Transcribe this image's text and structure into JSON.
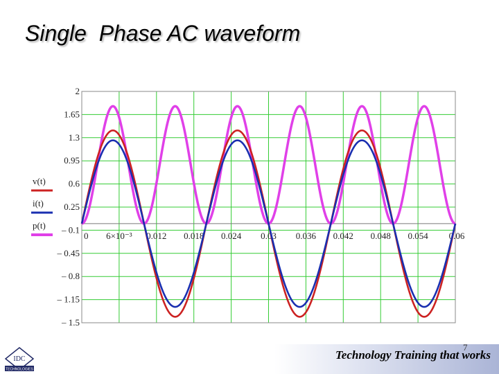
{
  "slide": {
    "title": "Single  Phase AC waveform",
    "footer": "Technology Training that works",
    "page_number": "7",
    "logo_text": "IDC",
    "logo_subtext": "TECHNOLOGIES"
  },
  "colors": {
    "v": "#cc2222",
    "i": "#1a2fb0",
    "p": "#e040e8",
    "grid": "#33cc33"
  },
  "chart_data": {
    "type": "line",
    "xlim": [
      0,
      0.06
    ],
    "ylim": [
      -1.5,
      2
    ],
    "x_ticks": [
      "0",
      "6×10⁻³",
      "0.012",
      "0.018",
      "0.024",
      "0.03",
      "0.036",
      "0.042",
      "0.048",
      "0.054",
      "0.06"
    ],
    "x_tick_values": [
      0,
      0.006,
      0.012,
      0.018,
      0.024,
      0.03,
      0.036,
      0.042,
      0.048,
      0.054,
      0.06
    ],
    "y_ticks": [
      "2",
      "1.65",
      "1.3",
      "0.95",
      "0.6",
      "0.25",
      "– 0.1",
      "– 0.45",
      "– 0.8",
      "– 1.15",
      "– 1.5"
    ],
    "y_tick_values": [
      2,
      1.65,
      1.3,
      0.95,
      0.6,
      0.25,
      -0.1,
      -0.45,
      -0.8,
      -1.15,
      -1.5
    ],
    "grid": true,
    "legend": "left",
    "series": [
      {
        "name": "v(t)",
        "color": "#cc2222",
        "amplitude": 1.41,
        "frequency_hz": 50,
        "phase_rad": 0,
        "function": "sine"
      },
      {
        "name": "i(t)",
        "color": "#1a2fb0",
        "amplitude": 1.26,
        "frequency_hz": 50,
        "phase_rad": 0,
        "function": "sine"
      },
      {
        "name": "p(t)",
        "color": "#e040e8",
        "amplitude": 0.89,
        "offset": 0.89,
        "frequency_hz": 100,
        "function": "v*i"
      }
    ]
  }
}
